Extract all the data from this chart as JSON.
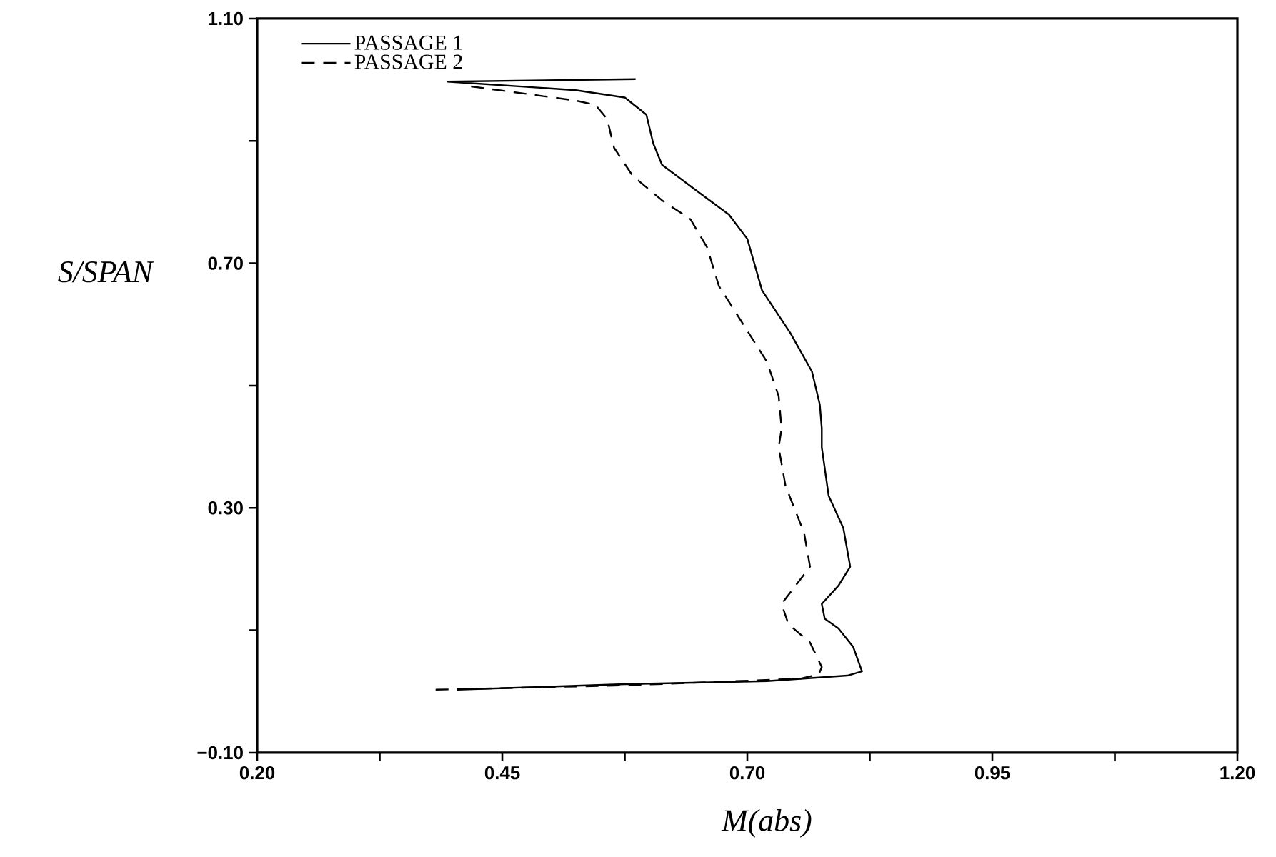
{
  "chart_data": {
    "type": "line",
    "xlabel": "M(abs)",
    "ylabel": "S/SPAN",
    "xlim": [
      0.2,
      1.2
    ],
    "ylim": [
      -0.1,
      1.1
    ],
    "xticks": [
      {
        "value": 0.2,
        "label": "0.20"
      },
      {
        "value": 0.325,
        "label": null
      },
      {
        "value": 0.45,
        "label": "0.45"
      },
      {
        "value": 0.575,
        "label": null
      },
      {
        "value": 0.7,
        "label": "0.70"
      },
      {
        "value": 0.825,
        "label": null
      },
      {
        "value": 0.95,
        "label": "0.95"
      },
      {
        "value": 1.075,
        "label": null
      },
      {
        "value": 1.2,
        "label": "1.20"
      }
    ],
    "yticks": [
      {
        "value": -0.1,
        "label": "−0.10"
      },
      {
        "value": 0.1,
        "label": null
      },
      {
        "value": 0.3,
        "label": "0.30"
      },
      {
        "value": 0.5,
        "label": null
      },
      {
        "value": 0.7,
        "label": "0.70"
      },
      {
        "value": 0.9,
        "label": null
      },
      {
        "value": 1.1,
        "label": "1.10"
      }
    ],
    "legend": "top left",
    "grid": false,
    "marker": "none",
    "series": [
      {
        "name": "PASSAGE 1",
        "color": "#000000",
        "line_style": "solid",
        "x": [
          0.404,
          0.575,
          0.72,
          0.802,
          0.817,
          0.808,
          0.793,
          0.779,
          0.776,
          0.793,
          0.805,
          0.798,
          0.783,
          0.776,
          0.776,
          0.774,
          0.766,
          0.744,
          0.715,
          0.7,
          0.681,
          0.648,
          0.613,
          0.604,
          0.597,
          0.575,
          0.525,
          0.394,
          0.586
        ],
        "values": [
          0.003,
          0.012,
          0.017,
          0.026,
          0.033,
          0.073,
          0.103,
          0.119,
          0.143,
          0.173,
          0.204,
          0.267,
          0.32,
          0.399,
          0.43,
          0.469,
          0.523,
          0.586,
          0.656,
          0.74,
          0.78,
          0.819,
          0.861,
          0.896,
          0.943,
          0.971,
          0.983,
          0.997,
          1.001
        ]
      },
      {
        "name": "PASSAGE 2",
        "color": "#000000",
        "line_style": "dashed",
        "x": [
          0.382,
          0.575,
          0.754,
          0.773,
          0.776,
          0.764,
          0.742,
          0.735,
          0.764,
          0.758,
          0.739,
          0.732,
          0.735,
          0.732,
          0.72,
          0.696,
          0.671,
          0.659,
          0.642,
          0.613,
          0.583,
          0.564,
          0.557,
          0.545,
          0.525,
          0.414
        ],
        "values": [
          0.003,
          0.01,
          0.021,
          0.028,
          0.04,
          0.08,
          0.11,
          0.143,
          0.204,
          0.259,
          0.336,
          0.399,
          0.43,
          0.483,
          0.539,
          0.6,
          0.663,
          0.726,
          0.772,
          0.803,
          0.843,
          0.889,
          0.936,
          0.959,
          0.966,
          0.99
        ]
      }
    ]
  }
}
